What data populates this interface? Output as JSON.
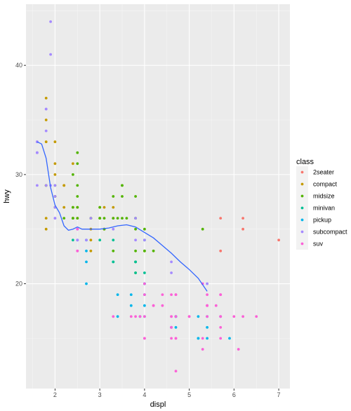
{
  "chart_data": {
    "type": "scatter",
    "xlabel": "displ",
    "ylabel": "hwy",
    "xlim": [
      1.35,
      7.25
    ],
    "ylim": [
      10.4,
      45.6
    ],
    "x_ticks": [
      2,
      3,
      4,
      5,
      6,
      7
    ],
    "y_ticks": [
      20,
      30,
      40
    ],
    "grid": true,
    "legend_placement": "right",
    "legend_title": "class",
    "series": [
      {
        "name": "2seater",
        "color": "#F8766D",
        "points": [
          [
            5.7,
            26
          ],
          [
            5.7,
            23
          ],
          [
            6.2,
            26
          ],
          [
            6.2,
            25
          ],
          [
            7.0,
            24
          ]
        ]
      },
      {
        "name": "compact",
        "color": "#C49A00",
        "points": [
          [
            1.8,
            29
          ],
          [
            1.8,
            29
          ],
          [
            2.0,
            31
          ],
          [
            2.0,
            30
          ],
          [
            2.8,
            26
          ],
          [
            2.8,
            26
          ],
          [
            3.1,
            27
          ],
          [
            1.8,
            26
          ],
          [
            1.8,
            25
          ],
          [
            2.0,
            28
          ],
          [
            2.0,
            27
          ],
          [
            2.8,
            25
          ],
          [
            3.1,
            25
          ],
          [
            2.2,
            27
          ],
          [
            2.2,
            29
          ],
          [
            2.4,
            27
          ],
          [
            2.4,
            31
          ],
          [
            3.0,
            26
          ],
          [
            1.8,
            35
          ],
          [
            1.8,
            37
          ],
          [
            2.0,
            33
          ],
          [
            2.5,
            27
          ],
          [
            2.5,
            26
          ],
          [
            1.8,
            33
          ],
          [
            2.2,
            29
          ],
          [
            2.8,
            24
          ],
          [
            2.8,
            23
          ],
          [
            3.3,
            26
          ],
          [
            3.3,
            27
          ],
          [
            3.0,
            27
          ],
          [
            2.4,
            26
          ]
        ]
      },
      {
        "name": "midsize",
        "color": "#53B400",
        "points": [
          [
            2.4,
            27
          ],
          [
            2.4,
            30
          ],
          [
            3.1,
            26
          ],
          [
            3.5,
            29
          ],
          [
            3.6,
            26
          ],
          [
            2.4,
            26
          ],
          [
            3.0,
            26
          ],
          [
            3.3,
            28
          ],
          [
            3.3,
            26
          ],
          [
            3.8,
            26
          ],
          [
            3.8,
            25
          ],
          [
            3.8,
            28
          ],
          [
            3.8,
            26
          ],
          [
            4.0,
            25
          ],
          [
            2.5,
            27
          ],
          [
            2.5,
            29
          ],
          [
            3.0,
            27
          ],
          [
            3.5,
            29
          ],
          [
            3.0,
            26
          ],
          [
            3.5,
            26
          ],
          [
            2.5,
            28
          ],
          [
            2.5,
            26
          ],
          [
            3.5,
            28
          ],
          [
            2.0,
            29
          ],
          [
            2.0,
            27
          ],
          [
            2.0,
            28
          ],
          [
            2.5,
            32
          ],
          [
            2.5,
            31
          ],
          [
            2.2,
            26
          ],
          [
            2.8,
            26
          ],
          [
            3.1,
            25
          ],
          [
            3.4,
            26
          ],
          [
            1.8,
            29
          ],
          [
            2.4,
            26
          ],
          [
            2.8,
            26
          ],
          [
            3.3,
            23
          ],
          [
            3.8,
            21
          ],
          [
            3.8,
            22
          ],
          [
            4.0,
            23
          ],
          [
            4.0,
            23
          ],
          [
            4.2,
            23
          ],
          [
            3.8,
            23
          ],
          [
            5.3,
            25
          ]
        ]
      },
      {
        "name": "minivan",
        "color": "#00C094",
        "points": [
          [
            2.4,
            24
          ],
          [
            3.0,
            24
          ],
          [
            3.3,
            22
          ],
          [
            3.3,
            22
          ],
          [
            3.3,
            24
          ],
          [
            3.8,
            22
          ],
          [
            3.8,
            22
          ],
          [
            3.8,
            21
          ],
          [
            4.0,
            24
          ],
          [
            4.0,
            21
          ]
        ]
      },
      {
        "name": "pickup",
        "color": "#00B6EB",
        "points": [
          [
            2.7,
            20
          ],
          [
            3.4,
            17
          ],
          [
            3.4,
            19
          ],
          [
            4.0,
            17
          ],
          [
            4.0,
            19
          ],
          [
            4.6,
            16
          ],
          [
            4.7,
            16
          ],
          [
            4.7,
            17
          ],
          [
            5.2,
            15
          ],
          [
            5.2,
            15
          ],
          [
            5.7,
            17
          ],
          [
            5.9,
            15
          ],
          [
            3.9,
            17
          ],
          [
            4.7,
            17
          ],
          [
            5.2,
            17
          ],
          [
            5.4,
            15
          ],
          [
            4.0,
            20
          ],
          [
            4.0,
            18
          ],
          [
            4.6,
            16
          ],
          [
            5.4,
            16
          ],
          [
            5.4,
            17
          ],
          [
            4.7,
            17
          ],
          [
            3.7,
            18
          ],
          [
            3.7,
            19
          ],
          [
            2.7,
            22
          ],
          [
            2.7,
            23
          ],
          [
            2.7,
            24
          ],
          [
            4.0,
            20
          ]
        ]
      },
      {
        "name": "subcompact",
        "color": "#A58AFF",
        "points": [
          [
            1.6,
            33
          ],
          [
            1.6,
            32
          ],
          [
            1.6,
            29
          ],
          [
            1.8,
            34
          ],
          [
            1.8,
            36
          ],
          [
            1.8,
            36
          ],
          [
            2.0,
            27
          ],
          [
            1.6,
            33
          ],
          [
            1.6,
            32
          ],
          [
            1.8,
            29
          ],
          [
            1.9,
            44
          ],
          [
            1.9,
            41
          ],
          [
            1.9,
            29
          ],
          [
            2.0,
            26
          ],
          [
            2.0,
            28
          ],
          [
            2.0,
            29
          ],
          [
            2.5,
            25
          ],
          [
            2.5,
            24
          ],
          [
            2.7,
            24
          ],
          [
            2.8,
            26
          ],
          [
            3.8,
            26
          ],
          [
            3.8,
            24
          ],
          [
            4.0,
            24
          ],
          [
            4.6,
            22
          ],
          [
            4.6,
            21
          ],
          [
            5.4,
            20
          ],
          [
            5.4,
            20
          ],
          [
            2.0,
            26
          ],
          [
            2.5,
            24
          ],
          [
            2.5,
            24
          ],
          [
            3.3,
            25
          ]
        ]
      },
      {
        "name": "suv",
        "color": "#FB61D7",
        "points": [
          [
            5.3,
            20
          ],
          [
            5.3,
            15
          ],
          [
            5.3,
            20
          ],
          [
            5.7,
            17
          ],
          [
            6.0,
            17
          ],
          [
            5.7,
            15
          ],
          [
            5.7,
            17
          ],
          [
            6.2,
            17
          ],
          [
            6.5,
            17
          ],
          [
            4.0,
            17
          ],
          [
            4.0,
            15
          ],
          [
            4.6,
            16
          ],
          [
            4.6,
            15
          ],
          [
            5.4,
            18
          ],
          [
            4.7,
            19
          ],
          [
            4.7,
            17
          ],
          [
            4.7,
            12
          ],
          [
            5.7,
            19
          ],
          [
            6.1,
            14
          ],
          [
            5.3,
            14
          ],
          [
            4.6,
            17
          ],
          [
            5.4,
            19
          ],
          [
            5.4,
            18
          ],
          [
            5.4,
            17
          ],
          [
            5.6,
            18
          ],
          [
            4.2,
            18
          ],
          [
            4.7,
            15
          ],
          [
            4.7,
            19
          ],
          [
            5.0,
            17
          ],
          [
            5.0,
            17
          ],
          [
            5.7,
            19
          ],
          [
            4.4,
            19
          ],
          [
            3.3,
            17
          ],
          [
            2.5,
            25
          ],
          [
            2.5,
            23
          ],
          [
            2.5,
            23
          ],
          [
            3.7,
            17
          ],
          [
            4.0,
            15
          ],
          [
            4.6,
            19
          ],
          [
            4.6,
            16
          ],
          [
            5.4,
            18
          ],
          [
            3.9,
            17
          ],
          [
            4.0,
            19
          ],
          [
            4.0,
            20
          ],
          [
            4.4,
            18
          ],
          [
            4.7,
            15
          ],
          [
            4.6,
            17
          ],
          [
            4.2,
            18
          ],
          [
            5.7,
            16
          ],
          [
            3.8,
            17
          ]
        ]
      }
    ],
    "smooth": {
      "color": "#3366FF",
      "points": [
        [
          1.6,
          33.0
        ],
        [
          1.7,
          32.8
        ],
        [
          1.8,
          31.5
        ],
        [
          1.9,
          28.8
        ],
        [
          2.0,
          27.2
        ],
        [
          2.1,
          26.5
        ],
        [
          2.2,
          25.3
        ],
        [
          2.3,
          24.9
        ],
        [
          2.4,
          25.0
        ],
        [
          2.5,
          25.2
        ],
        [
          2.6,
          25.0
        ],
        [
          2.8,
          25.0
        ],
        [
          3.0,
          25.0
        ],
        [
          3.2,
          25.1
        ],
        [
          3.4,
          25.3
        ],
        [
          3.6,
          25.4
        ],
        [
          3.8,
          25.2
        ],
        [
          4.0,
          24.7
        ],
        [
          4.2,
          24.2
        ],
        [
          4.4,
          23.5
        ],
        [
          4.6,
          22.8
        ],
        [
          4.8,
          22.0
        ],
        [
          5.0,
          21.3
        ],
        [
          5.2,
          20.5
        ],
        [
          5.4,
          19.3
        ]
      ]
    }
  }
}
